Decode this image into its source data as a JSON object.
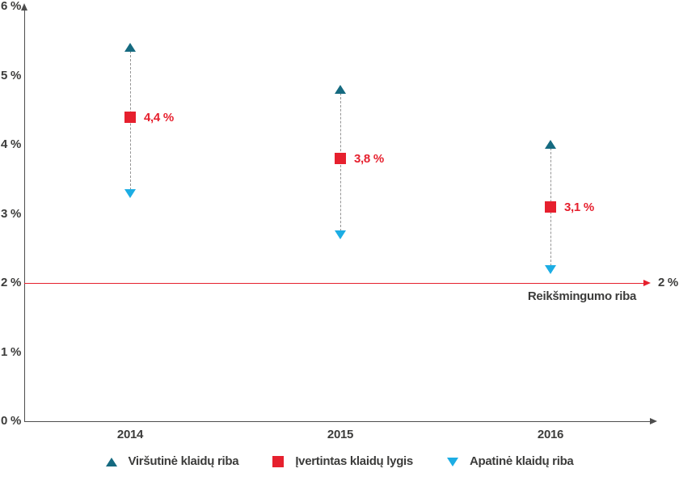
{
  "chart_data": {
    "type": "scatter",
    "title": "",
    "categories": [
      "2014",
      "2015",
      "2016"
    ],
    "series": [
      {
        "name": "Viršutinė klaidų riba",
        "marker": "triangle-up",
        "color": "#156a80",
        "values": [
          5.4,
          4.8,
          4.0
        ]
      },
      {
        "name": "Įvertintas klaidų lygis",
        "marker": "square",
        "color": "#e6202e",
        "values": [
          4.4,
          3.8,
          3.1
        ],
        "point_labels": [
          "4,4 %",
          "3,8 %",
          "3,1 %"
        ]
      },
      {
        "name": "Apatinė klaidų riba",
        "marker": "triangle-down",
        "color": "#1cade4",
        "values": [
          3.3,
          2.7,
          2.2
        ]
      }
    ],
    "reference_line": {
      "value": 2,
      "label": "2 %",
      "caption": "Reikšmingumo riba",
      "color": "#e6202e"
    },
    "y_axis": {
      "min": 0,
      "max": 6,
      "tick_step": 1,
      "tick_labels": [
        "0 %",
        "1 %",
        "2 %",
        "3 %",
        "4 %",
        "5 %",
        "6 %"
      ]
    },
    "x_axis": {
      "tick_labels": [
        "2014",
        "2015",
        "2016"
      ]
    },
    "legend": {
      "position": "bottom",
      "entries": [
        "Viršutinė klaidų riba",
        "Įvertintas klaidų lygis",
        "Apatinė klaidų riba"
      ]
    },
    "grid": false,
    "connector_style": "dashed",
    "axis_color": "#4d4d4d",
    "text_color": "#3c3c3b",
    "dash_color": "#949494"
  }
}
